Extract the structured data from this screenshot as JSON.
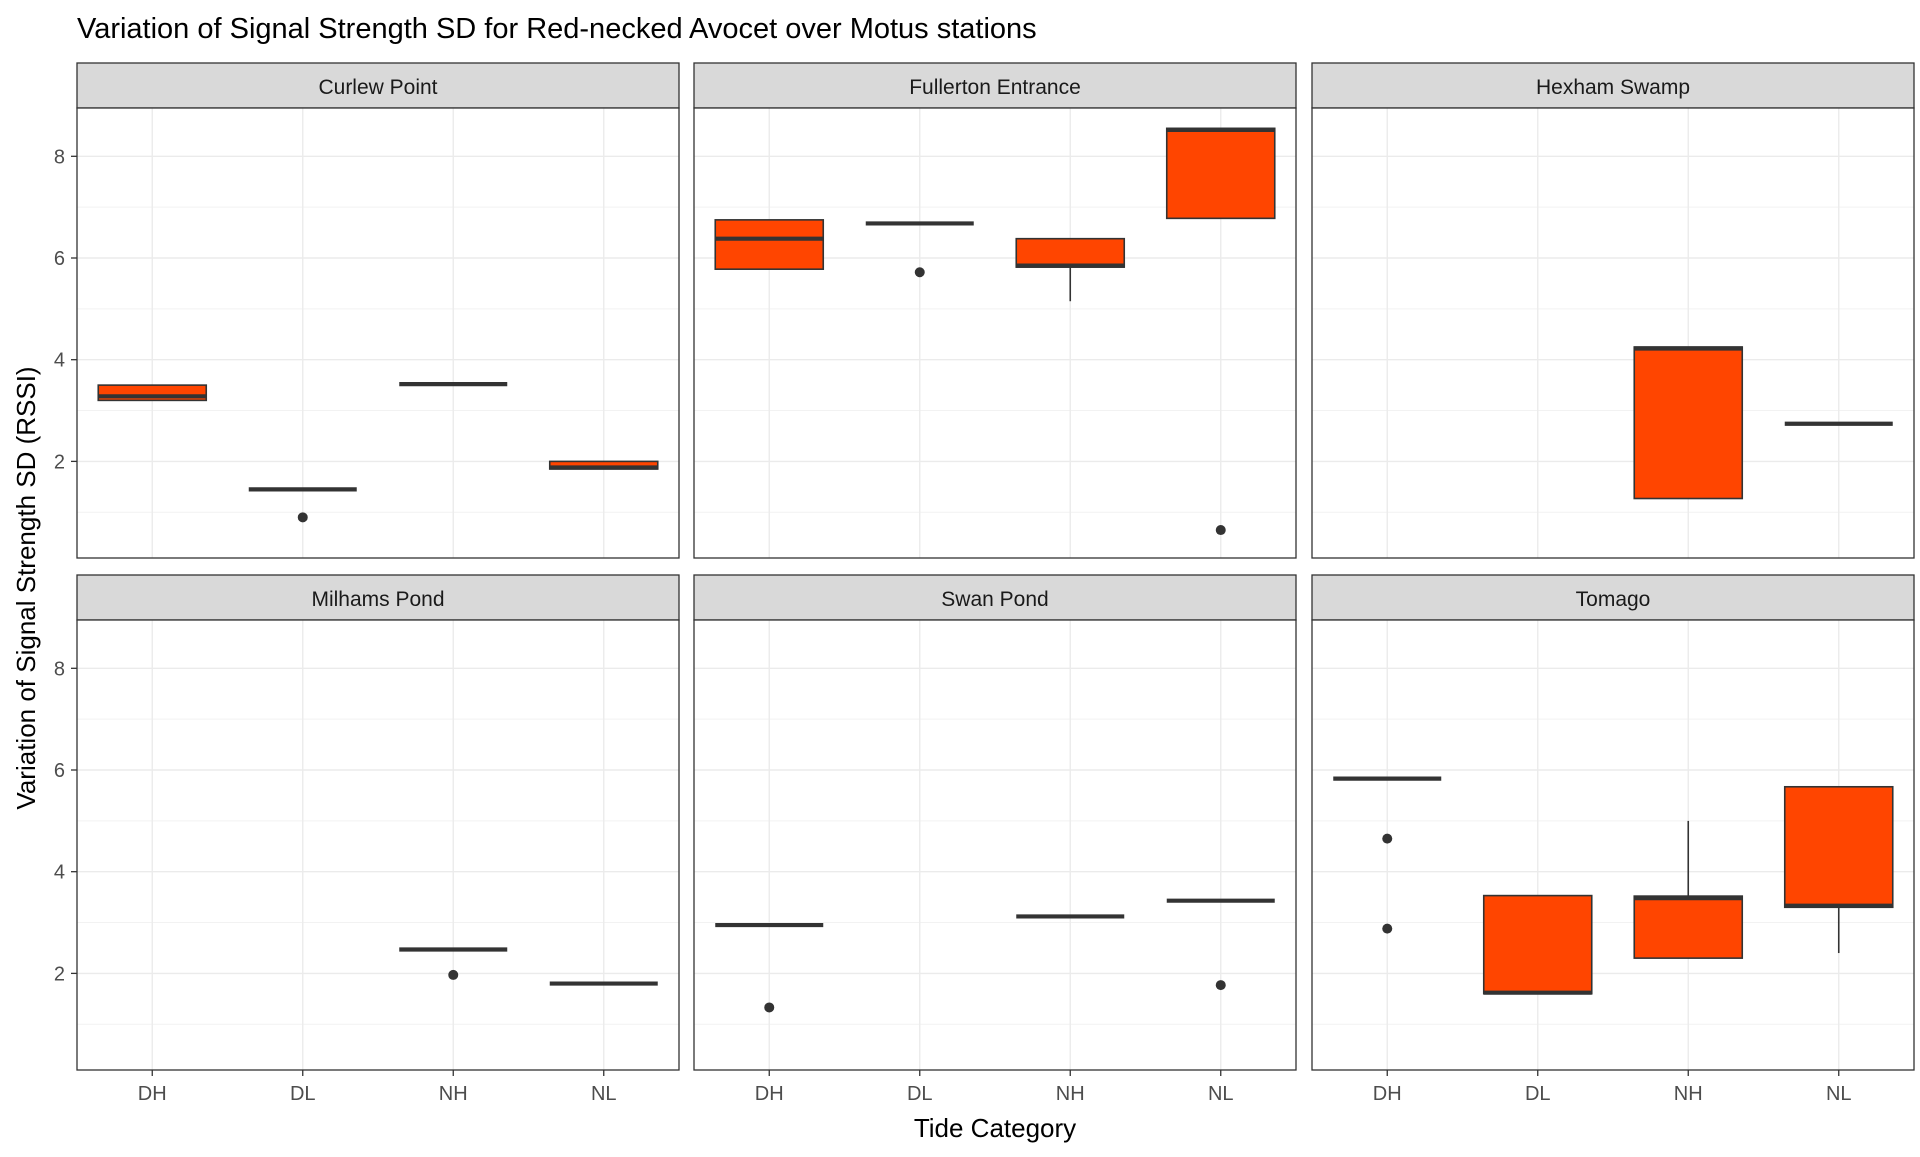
{
  "chart_data": {
    "type": "boxplot",
    "title": "Variation of Signal Strength SD for Red-necked Avocet over Motus stations",
    "xlabel": "Tide Category",
    "ylabel": "Variation of Signal Strength SD (RSSI)",
    "categories": [
      "DH",
      "DL",
      "NH",
      "NL"
    ],
    "ylim": [
      0.1,
      8.95
    ],
    "yticks": [
      2,
      4,
      6,
      8
    ],
    "grid": true,
    "fill_color": "#FF4500",
    "facets": [
      {
        "name": "Curlew Point",
        "boxes": [
          {
            "category": "DH",
            "lower": 3.2,
            "q1": 3.2,
            "median": 3.28,
            "q3": 3.5,
            "upper": 3.5,
            "outliers": []
          },
          {
            "category": "DL",
            "lower": 1.45,
            "q1": 1.45,
            "median": 1.45,
            "q3": 1.45,
            "upper": 1.45,
            "outliers": [
              0.9
            ]
          },
          {
            "category": "NH",
            "lower": 3.52,
            "q1": 3.52,
            "median": 3.52,
            "q3": 3.52,
            "upper": 3.52,
            "outliers": []
          },
          {
            "category": "NL",
            "lower": 1.85,
            "q1": 1.85,
            "median": 1.88,
            "q3": 2.0,
            "upper": 2.0,
            "outliers": []
          }
        ]
      },
      {
        "name": "Fullerton Entrance",
        "boxes": [
          {
            "category": "DH",
            "lower": 5.78,
            "q1": 5.78,
            "median": 6.38,
            "q3": 6.75,
            "upper": 6.75,
            "outliers": []
          },
          {
            "category": "DL",
            "lower": 6.68,
            "q1": 6.68,
            "median": 6.68,
            "q3": 6.68,
            "upper": 6.68,
            "outliers": [
              5.72
            ]
          },
          {
            "category": "NH",
            "lower": 5.15,
            "q1": 5.82,
            "median": 5.85,
            "q3": 6.38,
            "upper": 6.38,
            "outliers": []
          },
          {
            "category": "NL",
            "lower": 6.78,
            "q1": 6.78,
            "median": 8.52,
            "q3": 8.55,
            "upper": 8.55,
            "outliers": [
              0.65
            ]
          }
        ]
      },
      {
        "name": "Hexham Swamp",
        "boxes": [
          {
            "category": "NH",
            "lower": 1.27,
            "q1": 1.27,
            "median": 4.22,
            "q3": 4.25,
            "upper": 4.25,
            "outliers": []
          },
          {
            "category": "NL",
            "lower": 2.74,
            "q1": 2.74,
            "median": 2.74,
            "q3": 2.74,
            "upper": 2.74,
            "outliers": []
          }
        ]
      },
      {
        "name": "Milhams Pond",
        "boxes": [
          {
            "category": "NH",
            "lower": 2.47,
            "q1": 2.47,
            "median": 2.47,
            "q3": 2.47,
            "upper": 2.47,
            "outliers": [
              1.97
            ]
          },
          {
            "category": "NL",
            "lower": 1.8,
            "q1": 1.8,
            "median": 1.8,
            "q3": 1.8,
            "upper": 1.8,
            "outliers": []
          }
        ]
      },
      {
        "name": "Swan Pond",
        "boxes": [
          {
            "category": "DH",
            "lower": 2.95,
            "q1": 2.95,
            "median": 2.95,
            "q3": 2.95,
            "upper": 2.95,
            "outliers": [
              1.33
            ]
          },
          {
            "category": "NH",
            "lower": 3.12,
            "q1": 3.12,
            "median": 3.12,
            "q3": 3.12,
            "upper": 3.12,
            "outliers": []
          },
          {
            "category": "NL",
            "lower": 3.43,
            "q1": 3.43,
            "median": 3.43,
            "q3": 3.43,
            "upper": 3.43,
            "outliers": [
              1.77
            ]
          }
        ]
      },
      {
        "name": "Tomago",
        "boxes": [
          {
            "category": "DH",
            "lower": 5.83,
            "q1": 5.83,
            "median": 5.83,
            "q3": 5.83,
            "upper": 5.83,
            "outliers": [
              4.65,
              2.88
            ]
          },
          {
            "category": "DL",
            "lower": 1.6,
            "q1": 1.6,
            "median": 1.62,
            "q3": 3.53,
            "upper": 3.53,
            "outliers": []
          },
          {
            "category": "NH",
            "lower": 2.3,
            "q1": 2.3,
            "median": 3.48,
            "q3": 3.52,
            "upper": 5.0,
            "outliers": []
          },
          {
            "category": "NL",
            "lower": 2.4,
            "q1": 3.3,
            "median": 3.33,
            "q3": 5.67,
            "upper": 5.67,
            "outliers": []
          }
        ]
      }
    ]
  }
}
